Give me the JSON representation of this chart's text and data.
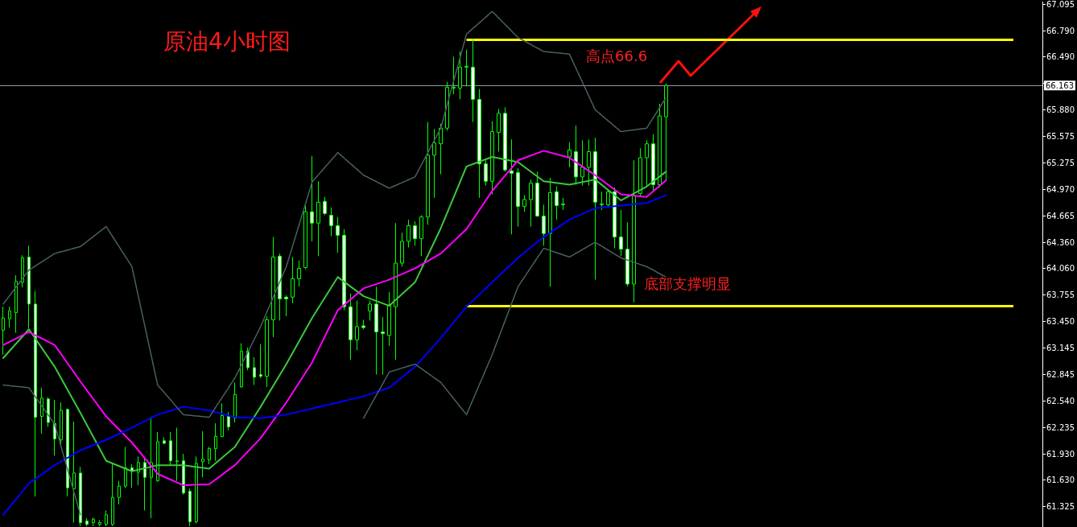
{
  "chart_data": {
    "type": "candlestick",
    "title": "原油4小时图",
    "annotations": [
      "高点66.6",
      "底部支撑明显"
    ],
    "categories": [
      null,
      null,
      null,
      null,
      null,
      null,
      null,
      null,
      null,
      null,
      null,
      null,
      null,
      null,
      null,
      null,
      null,
      null,
      null,
      null,
      null,
      null,
      null,
      null,
      null,
      null,
      null,
      null,
      null,
      null,
      null,
      null,
      null,
      null,
      null,
      null,
      null,
      null,
      null,
      null,
      null,
      null,
      null,
      null,
      null,
      null,
      null,
      null,
      null,
      null,
      null,
      null,
      null,
      null,
      null,
      null,
      null,
      null,
      null,
      null,
      null,
      null,
      null,
      null,
      null,
      null,
      null,
      null,
      null,
      null,
      null,
      null,
      null,
      null,
      null,
      null,
      null,
      null,
      null,
      null,
      null,
      null,
      null,
      null,
      null,
      null,
      null,
      null,
      null,
      null,
      null,
      null,
      null,
      null,
      null,
      null,
      null,
      null,
      null,
      null,
      null,
      null,
      null,
      null,
      null,
      null,
      null,
      null,
      null,
      null,
      null,
      null,
      null,
      null,
      null,
      null,
      null,
      null,
      null,
      null,
      null,
      null,
      null,
      null,
      null,
      null,
      null,
      null,
      null,
      null,
      null,
      null,
      null,
      null,
      null,
      null,
      null,
      null,
      null,
      null,
      null,
      null,
      null,
      null,
      null,
      null,
      null,
      null,
      null,
      null,
      null,
      null,
      null,
      null,
      null,
      null,
      null,
      null,
      null,
      null,
      null,
      null
    ],
    "color": "#00ff00",
    "ohlc": [
      [
        63.35,
        63.62,
        63.07,
        63.49
      ],
      [
        63.48,
        63.62,
        63.38,
        63.57
      ],
      [
        63.55,
        63.98,
        63.32,
        63.91
      ],
      [
        63.9,
        64.21,
        63.84,
        64.18
      ],
      [
        64.19,
        64.32,
        63.37,
        63.65
      ],
      [
        63.65,
        63.8,
        61.44,
        62.35
      ],
      [
        62.36,
        62.69,
        62.16,
        62.57
      ],
      [
        62.56,
        62.58,
        62.24,
        62.29
      ],
      [
        62.28,
        62.55,
        61.91,
        62.1
      ],
      [
        62.09,
        62.52,
        62.03,
        62.43
      ],
      [
        62.44,
        62.45,
        61.44,
        61.54
      ],
      [
        61.53,
        62.3,
        61.14,
        61.71
      ],
      [
        61.71,
        61.78,
        61.1,
        61.14
      ],
      [
        61.16,
        61.19,
        61.1,
        61.12
      ],
      [
        61.14,
        61.2,
        61.1,
        61.18
      ],
      [
        61.12,
        61.17,
        61.1,
        61.14
      ],
      [
        61.12,
        61.28,
        61.1,
        61.23
      ],
      [
        61.12,
        61.83,
        61.1,
        61.43
      ],
      [
        61.43,
        61.62,
        61.35,
        61.56
      ],
      [
        61.56,
        62.01,
        61.54,
        61.77
      ],
      [
        61.77,
        61.81,
        61.54,
        61.73
      ],
      [
        61.72,
        61.9,
        61.57,
        61.83
      ],
      [
        61.83,
        61.88,
        61.28,
        61.66
      ],
      [
        61.66,
        62.35,
        61.19,
        61.83
      ],
      [
        61.62,
        62.18,
        61.61,
        62.07
      ],
      [
        62.08,
        62.12,
        62.04,
        62.05
      ],
      [
        62.08,
        62.18,
        61.8,
        61.85
      ],
      [
        61.84,
        62.23,
        61.62,
        61.85
      ],
      [
        61.85,
        61.93,
        61.46,
        61.48
      ],
      [
        61.5,
        61.53,
        61.1,
        61.15
      ],
      [
        61.15,
        61.9,
        61.13,
        61.82
      ],
      [
        61.84,
        62.19,
        61.66,
        61.87
      ],
      [
        61.86,
        62.01,
        61.81,
        61.99
      ],
      [
        61.99,
        62.28,
        61.85,
        62.13
      ],
      [
        62.13,
        62.51,
        62.12,
        62.37
      ],
      [
        62.36,
        62.41,
        62.2,
        62.24
      ],
      [
        62.34,
        62.75,
        62.29,
        62.61
      ],
      [
        62.7,
        63.2,
        62.69,
        63.11
      ],
      [
        63.11,
        63.15,
        62.89,
        62.92
      ],
      [
        62.92,
        63.04,
        62.72,
        62.81
      ],
      [
        62.84,
        63.19,
        62.8,
        62.82
      ],
      [
        62.82,
        63.51,
        62.7,
        63.47
      ],
      [
        63.47,
        64.42,
        63.27,
        64.19
      ],
      [
        64.2,
        64.23,
        63.46,
        63.71
      ],
      [
        63.73,
        63.75,
        63.51,
        63.71
      ],
      [
        63.73,
        64.19,
        63.66,
        63.94
      ],
      [
        63.94,
        64.15,
        63.85,
        64.06
      ],
      [
        64.07,
        64.78,
        64.05,
        64.71
      ],
      [
        64.71,
        65.35,
        64.37,
        64.58
      ],
      [
        64.58,
        65.06,
        64.2,
        64.82
      ],
      [
        64.83,
        64.88,
        64.67,
        64.69
      ],
      [
        64.67,
        64.76,
        64.43,
        64.55
      ],
      [
        64.55,
        64.65,
        64.24,
        64.44
      ],
      [
        64.44,
        64.51,
        63.58,
        63.62
      ],
      [
        63.62,
        63.77,
        63.01,
        63.24
      ],
      [
        63.24,
        63.69,
        63.12,
        63.39
      ],
      [
        63.4,
        63.47,
        63.36,
        63.38
      ],
      [
        63.57,
        63.69,
        63.46,
        63.65
      ],
      [
        63.65,
        63.85,
        62.84,
        63.33
      ],
      [
        63.33,
        63.5,
        62.84,
        63.31
      ],
      [
        63.29,
        63.79,
        63.17,
        63.64
      ],
      [
        63.62,
        64.58,
        63.01,
        64.12
      ],
      [
        64.12,
        64.47,
        64.08,
        64.37
      ],
      [
        64.37,
        64.62,
        64.3,
        64.55
      ],
      [
        64.55,
        64.6,
        64.32,
        64.4
      ],
      [
        64.4,
        64.67,
        64.2,
        64.65
      ],
      [
        64.65,
        65.74,
        64.56,
        65.36
      ],
      [
        65.36,
        65.66,
        64.87,
        65.5
      ],
      [
        65.49,
        65.72,
        65.14,
        65.67
      ],
      [
        65.67,
        66.2,
        65.64,
        66.14
      ],
      [
        66.13,
        66.49,
        66.06,
        66.14
      ],
      [
        66.13,
        66.55,
        66.0,
        66.37
      ],
      [
        66.37,
        66.57,
        66.15,
        66.38
      ],
      [
        66.37,
        66.69,
        65.74,
        66.0
      ],
      [
        66.0,
        66.12,
        64.87,
        65.26
      ],
      [
        65.26,
        65.3,
        65.01,
        65.06
      ],
      [
        65.06,
        65.75,
        64.91,
        65.63
      ],
      [
        65.62,
        65.89,
        65.4,
        65.84
      ],
      [
        65.84,
        65.91,
        65.17,
        65.19
      ],
      [
        65.18,
        65.54,
        64.45,
        65.15
      ],
      [
        65.16,
        65.21,
        64.54,
        64.77
      ],
      [
        64.77,
        64.9,
        64.71,
        64.85
      ],
      [
        64.85,
        65.08,
        64.54,
        65.04
      ],
      [
        65.04,
        65.17,
        64.65,
        64.66
      ],
      [
        64.66,
        64.79,
        64.32,
        64.46
      ],
      [
        64.46,
        65.1,
        63.85,
        64.93
      ],
      [
        64.94,
        65.0,
        64.62,
        64.78
      ],
      [
        64.79,
        64.87,
        64.73,
        64.8
      ],
      [
        65.34,
        65.51,
        65.22,
        65.42
      ],
      [
        65.4,
        65.7,
        65.02,
        65.11
      ],
      [
        65.11,
        65.53,
        65.01,
        65.22
      ],
      [
        65.22,
        65.54,
        65.01,
        65.4
      ],
      [
        65.4,
        65.56,
        63.93,
        64.82
      ],
      [
        64.79,
        64.94,
        64.73,
        64.8
      ],
      [
        64.79,
        64.96,
        64.76,
        64.94
      ],
      [
        64.94,
        64.99,
        64.29,
        64.42
      ],
      [
        64.42,
        64.73,
        64.2,
        64.28
      ],
      [
        64.28,
        64.59,
        63.85,
        63.88
      ],
      [
        63.88,
        65.3,
        63.67,
        64.9
      ],
      [
        64.92,
        65.44,
        64.88,
        65.33
      ],
      [
        65.33,
        65.53,
        65.0,
        65.49
      ],
      [
        65.49,
        65.6,
        64.94,
        65.02
      ],
      [
        65.02,
        65.95,
        64.99,
        65.81
      ],
      [
        65.8,
        66.18,
        65.07,
        66.16
      ],
      null,
      null,
      null,
      null,
      null,
      null,
      null,
      null,
      null,
      null,
      null,
      null,
      null,
      null,
      null,
      null,
      null,
      null,
      null,
      null,
      null,
      null,
      null,
      null,
      null,
      null,
      null,
      null,
      null,
      null,
      null,
      null,
      null,
      null,
      null,
      null,
      null,
      null,
      null,
      null,
      null,
      null,
      null,
      null,
      null,
      null,
      null,
      null,
      null,
      null,
      null,
      null,
      null,
      null,
      null,
      null,
      null,
      null
    ],
    "series": [
      {
        "type": "line",
        "color": "#3cc83c",
        "values": [
          63.03,
          null,
          null,
          null,
          63.36,
          null,
          null,
          null,
          62.93,
          null,
          null,
          null,
          62.4,
          null,
          null,
          null,
          61.85,
          null,
          null,
          null,
          61.73,
          null,
          null,
          null,
          61.8,
          null,
          null,
          null,
          61.8,
          null,
          null,
          null,
          61.76,
          null,
          null,
          null,
          62.01,
          null,
          null,
          null,
          62.47,
          null,
          null,
          null,
          62.96,
          null,
          null,
          null,
          63.49,
          null,
          null,
          null,
          63.96,
          null,
          null,
          null,
          63.74,
          null,
          null,
          null,
          63.63,
          null,
          null,
          null,
          63.9,
          null,
          null,
          null,
          64.52,
          null,
          null,
          null,
          65.23,
          null,
          null,
          null,
          65.34,
          null,
          null,
          null,
          65.28,
          null,
          null,
          null,
          65.06,
          null,
          null,
          null,
          65.02,
          null,
          null,
          null,
          65.08,
          null,
          null,
          null,
          64.84,
          null,
          null,
          null,
          65.0,
          null,
          null,
          65.17,
          null,
          null,
          null,
          null,
          null,
          null,
          null,
          null,
          null,
          null,
          null,
          null,
          null,
          null,
          null,
          null,
          null,
          null,
          null,
          null,
          null,
          null,
          null,
          null,
          null,
          null,
          null,
          null,
          null,
          null,
          null,
          null,
          null,
          null,
          null,
          null,
          null,
          null,
          null,
          null,
          null,
          null,
          null,
          null,
          null,
          null,
          null,
          null,
          null,
          null,
          null,
          null,
          null,
          null,
          null,
          null,
          null,
          null
        ]
      },
      {
        "type": "line",
        "color": "#ff00ff",
        "values": [
          63.18,
          null,
          null,
          null,
          63.33,
          null,
          null,
          null,
          63.18,
          null,
          null,
          null,
          62.76,
          null,
          null,
          null,
          62.36,
          null,
          null,
          null,
          62.06,
          null,
          null,
          null,
          61.7,
          null,
          null,
          null,
          61.57,
          null,
          null,
          null,
          61.58,
          null,
          null,
          null,
          61.8,
          null,
          null,
          null,
          62.11,
          null,
          null,
          null,
          62.52,
          null,
          null,
          null,
          62.98,
          null,
          null,
          null,
          63.58,
          null,
          null,
          null,
          63.83,
          null,
          null,
          null,
          63.93,
          null,
          null,
          null,
          64.06,
          null,
          null,
          null,
          64.23,
          null,
          null,
          null,
          64.51,
          null,
          null,
          null,
          64.95,
          null,
          null,
          null,
          65.3,
          null,
          null,
          null,
          65.41,
          null,
          null,
          null,
          65.33,
          null,
          null,
          null,
          65.13,
          null,
          null,
          null,
          64.91,
          null,
          null,
          null,
          64.88,
          null,
          null,
          65.07,
          null,
          null,
          null,
          null,
          null,
          null,
          null,
          null,
          null,
          null,
          null,
          null,
          null,
          null,
          null,
          null,
          null,
          null,
          null,
          null,
          null,
          null,
          null,
          null,
          null,
          null,
          null,
          null,
          null,
          null,
          null,
          null,
          null,
          null,
          null,
          null,
          null,
          null,
          null,
          null,
          null,
          null,
          null,
          null,
          null,
          null,
          null,
          null,
          null,
          null,
          null,
          null,
          null,
          null,
          null,
          null,
          null,
          null
        ]
      },
      {
        "type": "line",
        "color": "#0000ff",
        "values": [
          61.23,
          null,
          null,
          null,
          61.59,
          null,
          null,
          null,
          61.8,
          null,
          null,
          null,
          61.97,
          null,
          null,
          null,
          62.09,
          null,
          null,
          null,
          62.23,
          null,
          null,
          null,
          62.38,
          null,
          null,
          null,
          62.47,
          null,
          null,
          null,
          62.43,
          null,
          null,
          null,
          62.35,
          null,
          null,
          null,
          62.34,
          null,
          null,
          null,
          62.38,
          null,
          null,
          null,
          62.45,
          null,
          null,
          null,
          62.52,
          null,
          null,
          null,
          62.59,
          null,
          null,
          null,
          62.69,
          null,
          null,
          null,
          62.93,
          null,
          null,
          null,
          63.26,
          null,
          null,
          null,
          63.62,
          null,
          null,
          null,
          63.9,
          null,
          null,
          null,
          64.18,
          null,
          null,
          null,
          64.42,
          null,
          null,
          null,
          64.62,
          null,
          null,
          null,
          64.75,
          null,
          null,
          null,
          64.78,
          null,
          null,
          null,
          64.81,
          null,
          null,
          64.9,
          null,
          null,
          null,
          null,
          null,
          null,
          null,
          null,
          null,
          null,
          null,
          null,
          null,
          null,
          null,
          null,
          null,
          null,
          null,
          null,
          null,
          null,
          null,
          null,
          null,
          null,
          null,
          null,
          null,
          null,
          null,
          null,
          null,
          null,
          null,
          null,
          null,
          null,
          null,
          null,
          null,
          null,
          null,
          null,
          null,
          null,
          null,
          null,
          null,
          null,
          null,
          null,
          null,
          null,
          null,
          null,
          null,
          null
        ]
      },
      {
        "type": "line",
        "color": "#4a6262",
        "line_style": "dotted",
        "values": [
          63.65,
          null,
          null,
          null,
          64.04,
          null,
          null,
          null,
          64.23,
          null,
          null,
          null,
          64.31,
          null,
          null,
          null,
          64.54,
          null,
          null,
          null,
          64.08,
          null,
          null,
          null,
          62.72,
          null,
          null,
          null,
          62.38,
          null,
          null,
          null,
          62.35,
          null,
          null,
          null,
          62.8,
          null,
          null,
          null,
          63.39,
          null,
          null,
          null,
          64.08,
          null,
          null,
          null,
          65.05,
          null,
          null,
          null,
          65.39,
          null,
          null,
          null,
          65.13,
          null,
          null,
          null,
          64.98,
          null,
          null,
          null,
          65.11,
          null,
          null,
          null,
          65.67,
          null,
          null,
          null,
          66.75,
          null,
          null,
          null,
          67.01,
          null,
          null,
          null,
          66.71,
          null,
          null,
          null,
          66.55,
          null,
          null,
          null,
          66.52,
          null,
          null,
          null,
          65.88,
          null,
          null,
          null,
          65.63,
          null,
          null,
          null,
          65.67,
          null,
          null,
          66.02,
          null,
          null,
          null,
          null,
          null,
          null,
          null,
          null,
          null,
          null,
          null,
          null,
          null,
          null,
          null,
          null,
          null,
          null,
          null,
          null,
          null,
          null,
          null,
          null,
          null,
          null,
          null,
          null,
          null,
          null,
          null,
          null,
          null,
          null,
          null,
          null,
          null,
          null,
          null,
          null,
          null,
          null,
          null,
          null,
          null,
          null,
          null,
          null,
          null,
          null,
          null,
          null,
          null,
          null,
          null,
          null,
          null,
          null
        ]
      },
      {
        "type": "line",
        "color": "#4a6262",
        "line_style": "dotted",
        "values": [
          62.72,
          null,
          null,
          null,
          62.69,
          null,
          null,
          null,
          62.27,
          null,
          null,
          null,
          61.23,
          null,
          null,
          null,
          null,
          null,
          null,
          null,
          null,
          null,
          null,
          null,
          null,
          null,
          null,
          null,
          null,
          null,
          null,
          null,
          null,
          null,
          null,
          null,
          null,
          null,
          null,
          null,
          null,
          null,
          null,
          null,
          null,
          null,
          null,
          null,
          null,
          null,
          null,
          null,
          null,
          null,
          null,
          null,
          null,
          null,
          null,
          null,
          null,
          null,
          null,
          null,
          null,
          null,
          null,
          null,
          null,
          null,
          null,
          null,
          null,
          null,
          null,
          null,
          null,
          null,
          null,
          null,
          null,
          null,
          null,
          null,
          null,
          null,
          null,
          null,
          null,
          null,
          null,
          null,
          null,
          null,
          null,
          null,
          null,
          null,
          null,
          null,
          null,
          null,
          null,
          null,
          null,
          null,
          null,
          null,
          null,
          null,
          null,
          null,
          null,
          null,
          null,
          null,
          null,
          null,
          null,
          null,
          null,
          null,
          null,
          null,
          null,
          null,
          null,
          null,
          null,
          null,
          null,
          null,
          null,
          null,
          null,
          null,
          null,
          null,
          null,
          null,
          null,
          null,
          null,
          null,
          null,
          null,
          null,
          null,
          null,
          null,
          null,
          null,
          null,
          null,
          null,
          null,
          null,
          null,
          null,
          null,
          null,
          null
        ]
      },
      {
        "type": "line",
        "color": "#4a6262",
        "line_style": "dotted",
        "values": [
          null,
          null,
          null,
          null,
          null,
          null,
          null,
          null,
          null,
          null,
          null,
          null,
          null,
          null,
          null,
          null,
          null,
          null,
          null,
          null,
          null,
          null,
          null,
          null,
          null,
          null,
          null,
          null,
          null,
          null,
          null,
          null,
          null,
          null,
          null,
          null,
          null,
          null,
          null,
          null,
          null,
          null,
          null,
          null,
          null,
          null,
          null,
          null,
          null,
          null,
          null,
          null,
          null,
          null,
          null,
          null,
          62.34,
          null,
          null,
          null,
          62.87,
          null,
          null,
          null,
          62.96,
          null,
          null,
          null,
          62.75,
          null,
          null,
          null,
          62.38,
          null,
          null,
          null,
          63.07,
          null,
          null,
          null,
          63.85,
          null,
          null,
          null,
          64.29,
          null,
          null,
          null,
          64.19,
          null,
          null,
          null,
          64.36,
          null,
          null,
          null,
          64.18,
          null,
          null,
          null,
          64.08,
          null,
          null,
          63.96,
          null,
          null,
          null,
          null,
          null,
          null,
          null,
          null,
          null,
          null,
          null,
          null,
          null,
          null,
          null,
          null,
          null,
          null,
          null,
          null,
          null,
          null,
          null,
          null,
          null,
          null,
          null,
          null,
          null,
          null,
          null,
          null,
          null,
          null,
          null,
          null,
          null,
          null,
          null,
          null,
          null,
          null,
          null,
          null,
          null,
          null,
          null,
          null,
          null,
          null,
          null,
          null,
          null,
          null,
          null,
          null,
          null,
          null
        ]
      }
    ],
    "ref_lines": [
      {
        "axis": "y",
        "value": 66.69,
        "color": "#ffff00"
      },
      {
        "axis": "y",
        "value": 63.63,
        "color": "#ffff00"
      },
      {
        "axis": "y",
        "value": 66.163,
        "label": "66.163",
        "color": "#8a97a8"
      }
    ],
    "ylim": [
      61.09,
      67.12
    ],
    "yticks": [
      67.095,
      {
        "value": 66.79,
        "label": "66.790"
      },
      {
        "value": 66.49,
        "label": "66.490"
      },
      {
        "value": 66.185,
        "label": null
      },
      {
        "value": 65.88,
        "label": "65.880"
      },
      65.575,
      65.275,
      {
        "value": 64.97,
        "label": "64.970"
      },
      64.665,
      {
        "value": 64.36,
        "label": "64.360"
      },
      {
        "value": 64.06,
        "label": "64.060"
      },
      63.755,
      {
        "value": 63.45,
        "label": "63.450"
      },
      63.145,
      62.845,
      {
        "value": 62.54,
        "label": "62.540"
      },
      62.235,
      {
        "value": 61.93,
        "label": "61.930"
      },
      {
        "value": 61.63,
        "label": "61.630"
      },
      61.325
    ],
    "marker": "none",
    "tick_labels": "y"
  }
}
